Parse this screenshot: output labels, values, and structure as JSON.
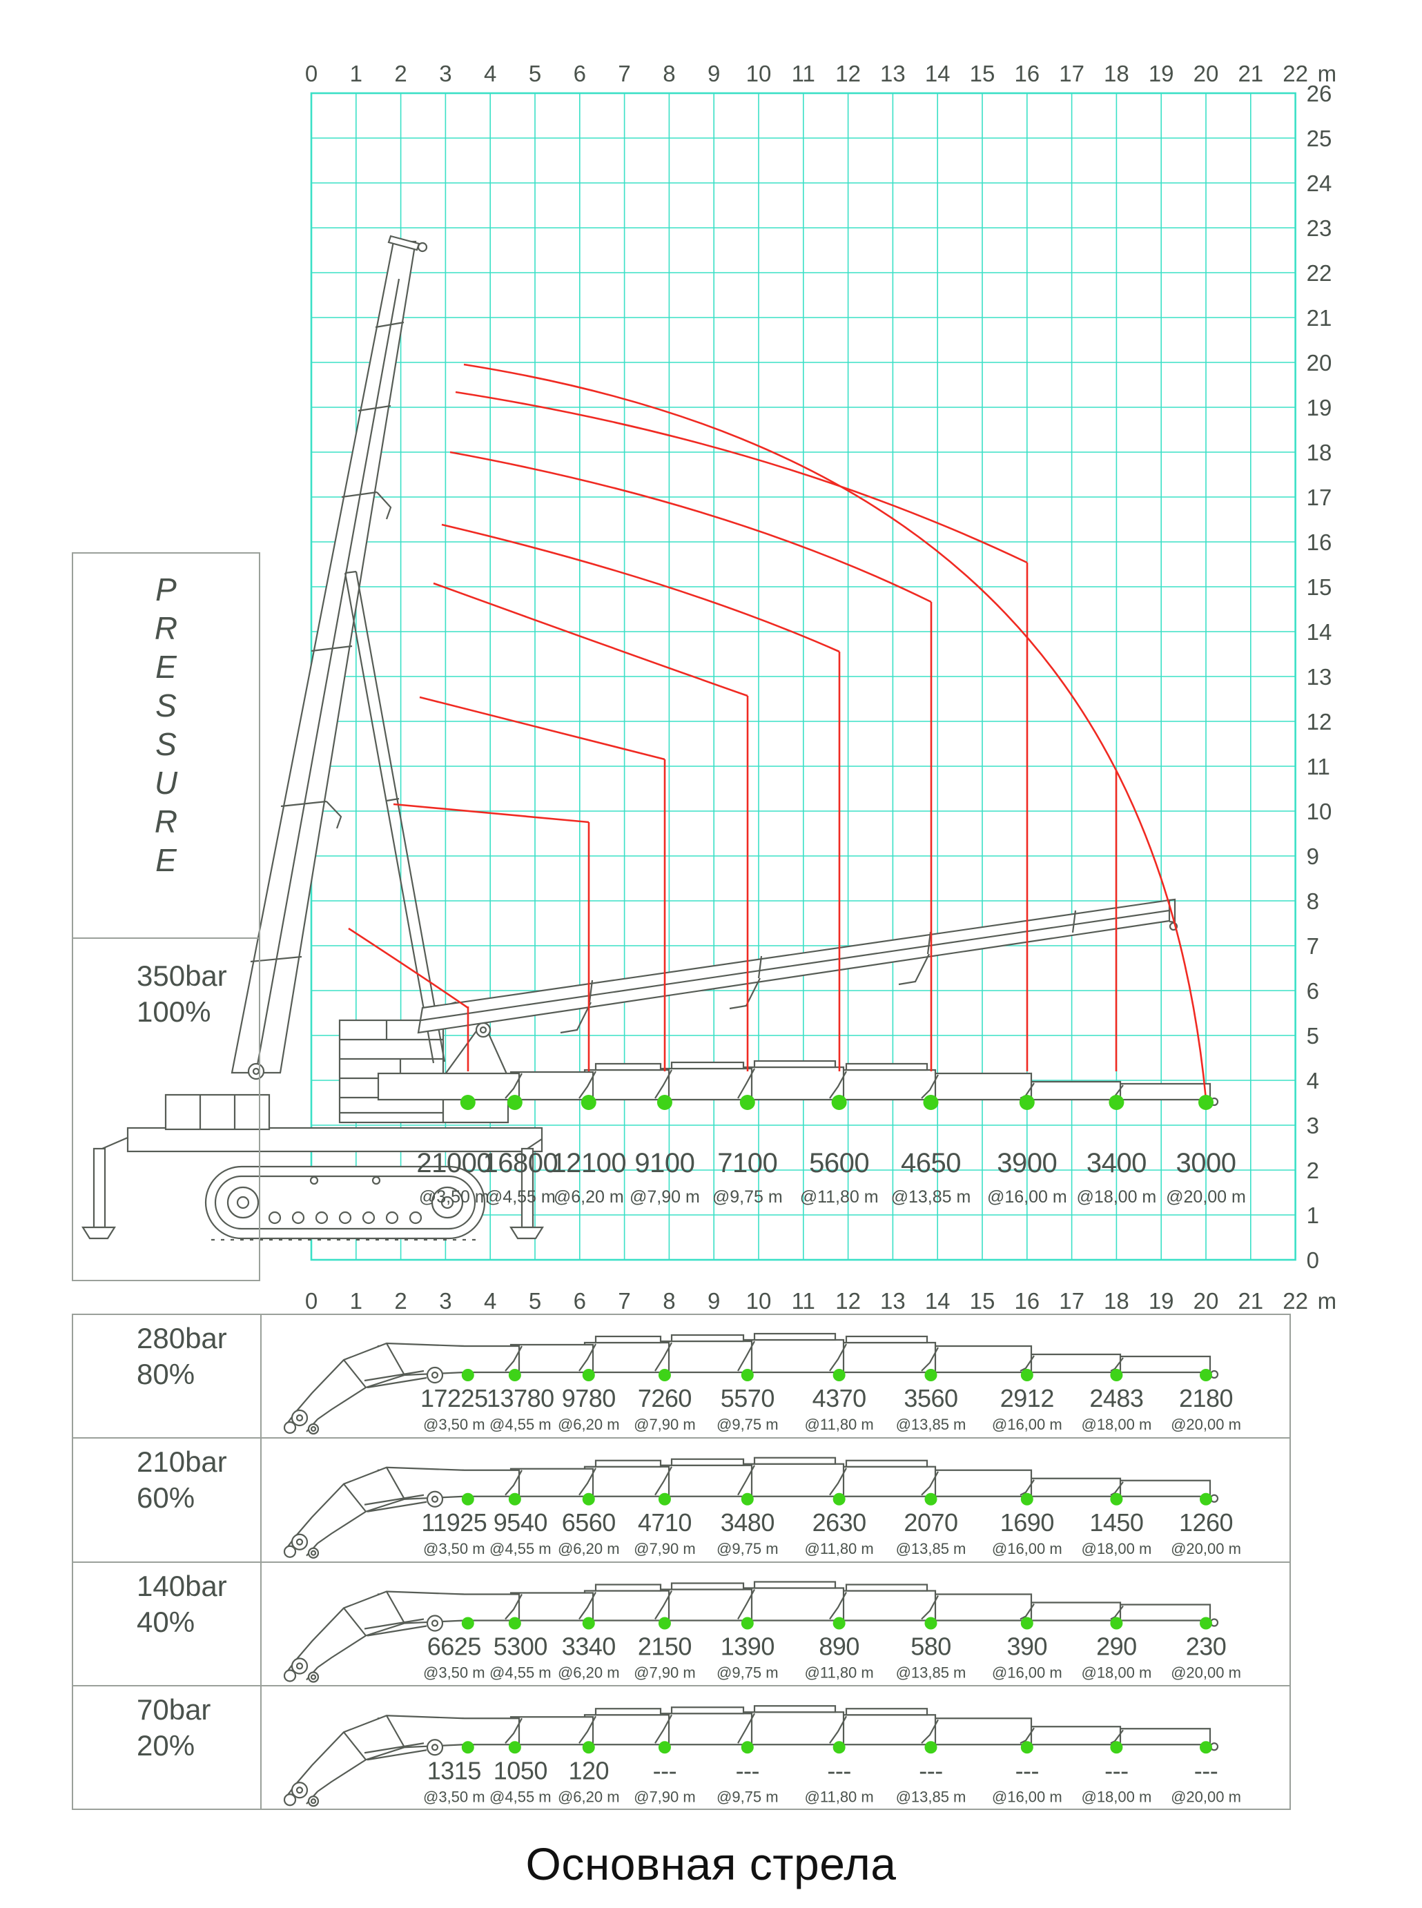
{
  "page": {
    "title": "Основная стрела"
  },
  "pressure_panel": {
    "label": "PRESSURE"
  },
  "main_chart": {
    "pressure": "350bar",
    "percent": "100%",
    "loads": [
      "21000",
      "16800",
      "12100",
      "9100",
      "7100",
      "5600",
      "4650",
      "3900",
      "3400",
      "3000"
    ]
  },
  "rows": [
    {
      "pressure": "280bar",
      "percent": "80%",
      "loads": [
        "17225",
        "13780",
        "9780",
        "7260",
        "5570",
        "4370",
        "3560",
        "2912",
        "2483",
        "2180"
      ]
    },
    {
      "pressure": "210bar",
      "percent": "60%",
      "loads": [
        "11925",
        "9540",
        "6560",
        "4710",
        "3480",
        "2630",
        "2070",
        "1690",
        "1450",
        "1260"
      ]
    },
    {
      "pressure": "140bar",
      "percent": "40%",
      "loads": [
        "6625",
        "5300",
        "3340",
        "2150",
        "1390",
        "890",
        "580",
        "390",
        "290",
        "230"
      ]
    },
    {
      "pressure": "70bar",
      "percent": "20%",
      "loads": [
        "1315",
        "1050",
        "120",
        "---",
        "---",
        "---",
        "---",
        "---",
        "---",
        "---"
      ]
    }
  ],
  "distance_labels": [
    "@3,50 m",
    "@4,55 m",
    "@6,20 m",
    "@7,90 m",
    "@9,75 m",
    "@11,80 m",
    "@13,85 m",
    "@16,00 m",
    "@18,00 m",
    "@20,00 m"
  ],
  "axis": {
    "unit": "m",
    "x_ticks": [
      0,
      1,
      2,
      3,
      4,
      5,
      6,
      7,
      8,
      9,
      10,
      11,
      12,
      13,
      14,
      15,
      16,
      17,
      18,
      19,
      20,
      21,
      22
    ],
    "y_ticks": [
      0,
      1,
      2,
      3,
      4,
      5,
      6,
      7,
      8,
      9,
      10,
      11,
      12,
      13,
      14,
      15,
      16,
      17,
      18,
      19,
      20,
      21,
      22,
      23,
      24,
      25,
      26
    ]
  },
  "colors": {
    "grid": "#3ae0c6",
    "curve": "#f02a22",
    "dot": "#3ed318",
    "text": "#4a524c",
    "line_art": "#565c55",
    "border": "#9aa09a",
    "title": "#111111"
  },
  "chart_data": {
    "type": "line",
    "title": "Основная стрела",
    "x": [
      3.5,
      4.55,
      6.2,
      7.9,
      9.75,
      11.8,
      13.85,
      16.0,
      18.0,
      20.0
    ],
    "x_unit": "m",
    "y_unit": "kg",
    "series": [
      {
        "name": "350bar 100%",
        "values": [
          21000,
          16800,
          12100,
          9100,
          7100,
          5600,
          4650,
          3900,
          3400,
          3000
        ]
      },
      {
        "name": "280bar 80%",
        "values": [
          17225,
          13780,
          9780,
          7260,
          5570,
          4370,
          3560,
          2912,
          2483,
          2180
        ]
      },
      {
        "name": "210bar 60%",
        "values": [
          11925,
          9540,
          6560,
          4710,
          3480,
          2630,
          2070,
          1690,
          1450,
          1260
        ]
      },
      {
        "name": "140bar 40%",
        "values": [
          6625,
          5300,
          3340,
          2150,
          1390,
          890,
          580,
          390,
          290,
          230
        ]
      },
      {
        "name": "70bar 20%",
        "values": [
          1315,
          1050,
          120,
          null,
          null,
          null,
          null,
          null,
          null,
          null
        ]
      }
    ],
    "x_range": [
      0,
      22
    ],
    "y_range": [
      0,
      26
    ],
    "grid": true,
    "legend_position": "left-column",
    "annotations": "load in kg shown at each outreach point; green dots mark outreach positions"
  }
}
